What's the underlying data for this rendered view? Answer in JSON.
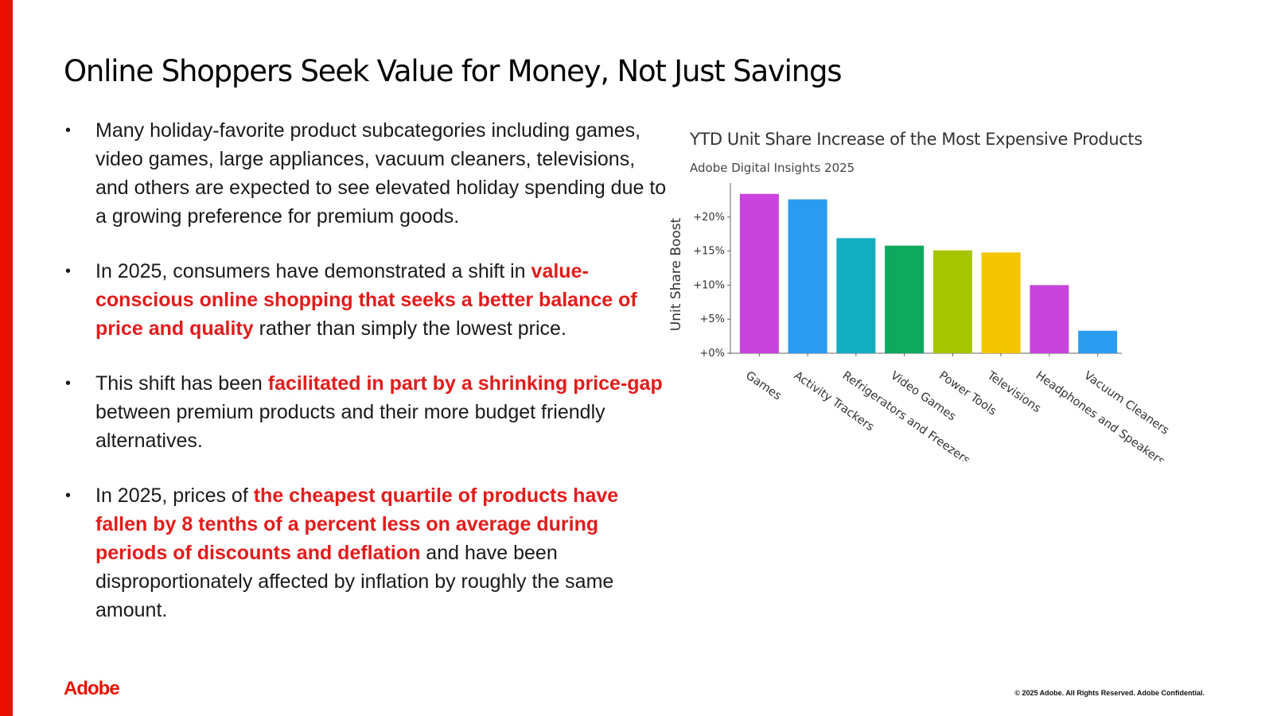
{
  "slide": {
    "title": "Online Shoppers Seek Value for Money, Not Just Savings",
    "bullets": [
      [
        {
          "text": "Many holiday-favorite product subcategories including  games, video games, large appliances, vacuum cleaners, televisions, and others are expected to see elevated holiday spending due to a growing preference for premium goods.",
          "highlight": false
        }
      ],
      [
        {
          "text": "In 2025, consumers have demonstrated a shift in ",
          "highlight": false
        },
        {
          "text": "value-conscious online shopping that seeks a better balance of price and quality",
          "highlight": true
        },
        {
          "text": " rather than simply the lowest price.",
          "highlight": false
        }
      ],
      [
        {
          "text": "This shift has been ",
          "highlight": false
        },
        {
          "text": "facilitated in part by a shrinking price-gap",
          "highlight": true
        },
        {
          "text": " between premium products and their more budget friendly alternatives.",
          "highlight": false
        }
      ],
      [
        {
          "text": "In 2025, prices of ",
          "highlight": false
        },
        {
          "text": "the cheapest quartile of products have fallen by 8 tenths of a percent less on average during periods of discounts and deflation",
          "highlight": true
        },
        {
          "text": " and have been disproportionately affected by inflation by roughly the same amount.",
          "highlight": false
        }
      ]
    ],
    "logo": "Adobe",
    "copyright": "© 2025 Adobe. All Rights Reserved. Adobe Confidential.",
    "colors": {
      "accent": "#eb1000",
      "highlight": "#e21b1b"
    }
  },
  "chart_data": {
    "type": "bar",
    "title": "YTD Unit Share Increase of the Most Expensive Products",
    "subtitle": "Adobe Digital Insights 2025",
    "xlabel": "",
    "ylabel": "Unit Share Boost",
    "categories": [
      "Games",
      "Activity Trackers",
      "Refrigerators and Freezers",
      "Video Games",
      "Power Tools",
      "Televisions",
      "Headphones and Speakers",
      "Vacuum Cleaners"
    ],
    "values": [
      23.4,
      22.6,
      16.9,
      15.8,
      15.1,
      14.8,
      10.0,
      3.3
    ],
    "bar_colors": [
      "#c944dc",
      "#2b9bf0",
      "#13adc1",
      "#0ea85f",
      "#a4c500",
      "#f2c500",
      "#c944dc",
      "#2b9bf0"
    ],
    "yticks": [
      0,
      5,
      10,
      15,
      20
    ],
    "ytick_labels": [
      "+0%",
      "+5%",
      "+10%",
      "+15%",
      "+20%"
    ],
    "ylim": [
      0,
      25
    ],
    "grid": false,
    "legend": "none"
  }
}
